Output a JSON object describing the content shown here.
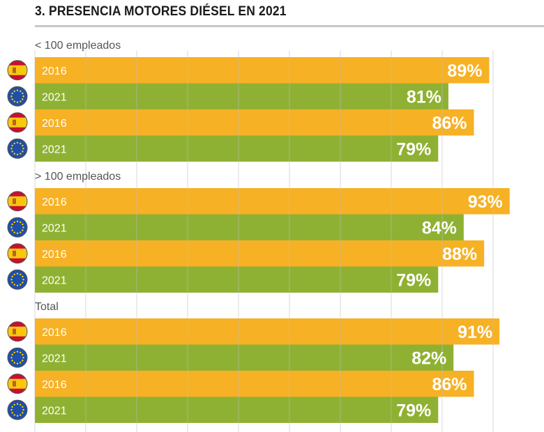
{
  "title": "3. PRESENCIA MOTORES DIÉSEL EN 2021",
  "colors": {
    "spain": "#f7b124",
    "eu": "#8fb133",
    "grid": "#bdbdbd",
    "rule": "#c8c8c8"
  },
  "chart_data": {
    "type": "bar",
    "orientation": "horizontal",
    "title": "3. PRESENCIA MOTORES DIÉSEL EN 2021",
    "xlim": [
      0,
      100
    ],
    "unit": "%",
    "groups": [
      {
        "label": "< 100 empleados",
        "bars": [
          {
            "flag": "spain-flag-icon",
            "year": "2016",
            "value": 89,
            "label": "89%"
          },
          {
            "flag": "eu-flag-icon",
            "year": "2021",
            "value": 81,
            "label": "81%"
          },
          {
            "flag": "spain-flag-icon",
            "year": "2016",
            "value": 86,
            "label": "86%"
          },
          {
            "flag": "eu-flag-icon",
            "year": "2021",
            "value": 79,
            "label": "79%"
          }
        ]
      },
      {
        "label": "> 100 empleados",
        "bars": [
          {
            "flag": "spain-flag-icon",
            "year": "2016",
            "value": 93,
            "label": "93%"
          },
          {
            "flag": "eu-flag-icon",
            "year": "2021",
            "value": 84,
            "label": "84%"
          },
          {
            "flag": "spain-flag-icon",
            "year": "2016",
            "value": 88,
            "label": "88%"
          },
          {
            "flag": "eu-flag-icon",
            "year": "2021",
            "value": 79,
            "label": "79%"
          }
        ]
      },
      {
        "label": "Total",
        "bars": [
          {
            "flag": "spain-flag-icon",
            "year": "2016",
            "value": 91,
            "label": "91%"
          },
          {
            "flag": "eu-flag-icon",
            "year": "2021",
            "value": 82,
            "label": "82%"
          },
          {
            "flag": "spain-flag-icon",
            "year": "2016",
            "value": 86,
            "label": "86%"
          },
          {
            "flag": "eu-flag-icon",
            "year": "2021",
            "value": 79,
            "label": "79%"
          }
        ]
      }
    ]
  }
}
